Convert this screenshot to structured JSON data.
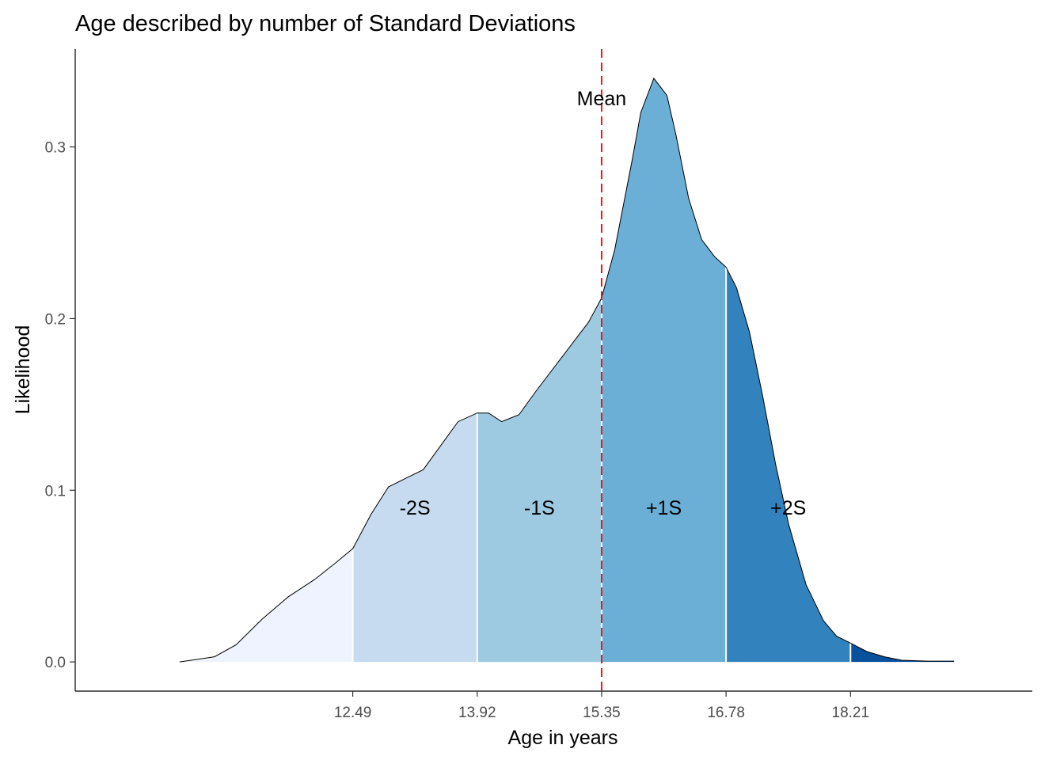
{
  "chart_data": {
    "type": "area",
    "title": "Age described by number of Standard Deviations",
    "xlabel": "Age in years",
    "ylabel": "Likelihood",
    "xlim": [
      9.3,
      20.3
    ],
    "ylim": [
      -0.017,
      0.357
    ],
    "x_ticks": [
      "12.49",
      "13.92",
      "15.35",
      "16.78",
      "18.21"
    ],
    "y_ticks": [
      "0.0",
      "0.1",
      "0.2",
      "0.3"
    ],
    "mean_line": {
      "x": 15.35,
      "label": "Mean",
      "color": "#e31a1c"
    },
    "bands": [
      {
        "from": 10.5,
        "to": 12.49,
        "label": "",
        "color": "#eff3ff"
      },
      {
        "from": 12.49,
        "to": 13.92,
        "label": "-2S",
        "color": "#c6dbef"
      },
      {
        "from": 13.92,
        "to": 15.35,
        "label": "-1S",
        "color": "#9ecae1"
      },
      {
        "from": 15.35,
        "to": 16.78,
        "label": "+1S",
        "color": "#6baed6"
      },
      {
        "from": 16.78,
        "to": 18.21,
        "label": "+2S",
        "color": "#3182bd"
      },
      {
        "from": 18.21,
        "to": 19.4,
        "label": "",
        "color": "#08519c"
      }
    ],
    "band_label_y": 0.089,
    "density": {
      "x": [
        10.5,
        10.9,
        11.15,
        11.45,
        11.75,
        12.05,
        12.3,
        12.49,
        12.7,
        12.9,
        13.1,
        13.3,
        13.5,
        13.7,
        13.92,
        14.05,
        14.2,
        14.4,
        14.6,
        14.9,
        15.2,
        15.35,
        15.5,
        15.7,
        15.8,
        15.95,
        16.1,
        16.2,
        16.35,
        16.5,
        16.65,
        16.78,
        16.9,
        17.05,
        17.2,
        17.35,
        17.5,
        17.7,
        17.9,
        18.05,
        18.21,
        18.4,
        18.6,
        18.8,
        19.1,
        19.4
      ],
      "y": [
        0.0,
        0.003,
        0.01,
        0.025,
        0.038,
        0.048,
        0.058,
        0.066,
        0.086,
        0.102,
        0.107,
        0.112,
        0.126,
        0.14,
        0.145,
        0.145,
        0.14,
        0.144,
        0.158,
        0.178,
        0.198,
        0.212,
        0.24,
        0.292,
        0.32,
        0.34,
        0.33,
        0.308,
        0.27,
        0.246,
        0.236,
        0.23,
        0.218,
        0.192,
        0.155,
        0.115,
        0.08,
        0.045,
        0.024,
        0.015,
        0.011,
        0.006,
        0.003,
        0.001,
        0.0005,
        0.0005
      ]
    }
  }
}
